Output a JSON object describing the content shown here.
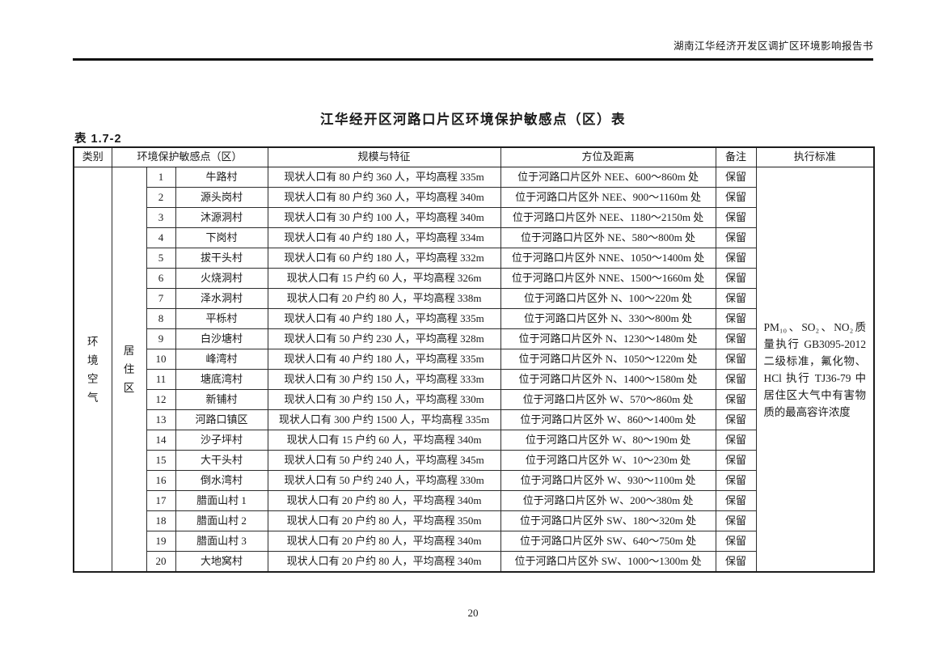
{
  "doc_header": {
    "title": "湖南江华经济开发区调扩区环境影响报告书"
  },
  "table_title": "江华经开区河路口片区环境保护敏感点（区）表",
  "table_label": "表 1.7-2",
  "table": {
    "headers": {
      "category": "类别",
      "sensitive_point": "环境保护敏感点（区）",
      "scale": "规模与特征",
      "direction": "方位及距离",
      "remark": "备注",
      "standard": "执行标准"
    },
    "category_vertical": "环境空气",
    "group_vertical": "居住区",
    "standard_text": "PM₁₀、SO₂、NO₂质量执行 GB3095-2012 二级标准，氟化物、HCl 执行 TJ36-79 中居住区大气中有害物质的最高容许浓度",
    "rows": [
      {
        "no": "1",
        "name": "牛路村",
        "scale": "现状人口有 80 户约 360 人，平均高程 335m",
        "direction": "位于河路口片区外 NEE、600～860m 处",
        "remark": "保留"
      },
      {
        "no": "2",
        "name": "源头岗村",
        "scale": "现状人口有 80 户约 360 人，平均高程 340m",
        "direction": "位于河路口片区外 NEE、900～1160m 处",
        "remark": "保留"
      },
      {
        "no": "3",
        "name": "沐源洞村",
        "scale": "现状人口有 30 户约 100 人，平均高程 340m",
        "direction": "位于河路口片区外 NEE、1180～2150m 处",
        "remark": "保留"
      },
      {
        "no": "4",
        "name": "下岗村",
        "scale": "现状人口有 40 户约 180 人，平均高程 334m",
        "direction": "位于河路口片区外 NE、580～800m 处",
        "remark": "保留"
      },
      {
        "no": "5",
        "name": "拔干头村",
        "scale": "现状人口有 60 户约 180 人，平均高程 332m",
        "direction": "位于河路口片区外 NNE、1050～1400m 处",
        "remark": "保留"
      },
      {
        "no": "6",
        "name": "火烧洞村",
        "scale": "现状人口有 15 户约 60 人，平均高程 326m",
        "direction": "位于河路口片区外 NNE、1500～1660m 处",
        "remark": "保留"
      },
      {
        "no": "7",
        "name": "泽水洞村",
        "scale": "现状人口有 20 户约 80 人，平均高程 338m",
        "direction": "位于河路口片区外 N、100～220m 处",
        "remark": "保留"
      },
      {
        "no": "8",
        "name": "平栎村",
        "scale": "现状人口有 40 户约 180 人，平均高程 335m",
        "direction": "位于河路口片区外 N、330～800m 处",
        "remark": "保留"
      },
      {
        "no": "9",
        "name": "白沙塘村",
        "scale": "现状人口有 50 户约 230 人，平均高程 328m",
        "direction": "位于河路口片区外 N、1230～1480m 处",
        "remark": "保留"
      },
      {
        "no": "10",
        "name": "峰湾村",
        "scale": "现状人口有 40 户约 180 人，平均高程 335m",
        "direction": "位于河路口片区外 N、1050～1220m 处",
        "remark": "保留"
      },
      {
        "no": "11",
        "name": "塘底湾村",
        "scale": "现状人口有 30 户约 150 人，平均高程 333m",
        "direction": "位于河路口片区外 N、1400～1580m 处",
        "remark": "保留"
      },
      {
        "no": "12",
        "name": "新铺村",
        "scale": "现状人口有 30 户约 150 人，平均高程 330m",
        "direction": "位于河路口片区外 W、570～860m 处",
        "remark": "保留"
      },
      {
        "no": "13",
        "name": "河路口镇区",
        "scale": "现状人口有 300 户约 1500 人，平均高程 335m",
        "direction": "位于河路口片区外 W、860～1400m 处",
        "remark": "保留"
      },
      {
        "no": "14",
        "name": "沙子坪村",
        "scale": "现状人口有 15 户约 60 人，平均高程 340m",
        "direction": "位于河路口片区外 W、80～190m 处",
        "remark": "保留"
      },
      {
        "no": "15",
        "name": "大干头村",
        "scale": "现状人口有 50 户约 240 人，平均高程 345m",
        "direction": "位于河路口片区外 W、10～230m 处",
        "remark": "保留"
      },
      {
        "no": "16",
        "name": "倒水湾村",
        "scale": "现状人口有 50 户约 240 人，平均高程 330m",
        "direction": "位于河路口片区外 W、930～1100m 处",
        "remark": "保留"
      },
      {
        "no": "17",
        "name": "腊面山村 1",
        "scale": "现状人口有 20 户约 80 人，平均高程 340m",
        "direction": "位于河路口片区外 W、200～380m 处",
        "remark": "保留"
      },
      {
        "no": "18",
        "name": "腊面山村 2",
        "scale": "现状人口有 20 户约 80 人，平均高程 350m",
        "direction": "位于河路口片区外 SW、180～320m 处",
        "remark": "保留"
      },
      {
        "no": "19",
        "name": "腊面山村 3",
        "scale": "现状人口有 20 户约 80 人，平均高程 340m",
        "direction": "位于河路口片区外 SW、640～750m 处",
        "remark": "保留"
      },
      {
        "no": "20",
        "name": "大地窝村",
        "scale": "现状人口有 20 户约 80 人，平均高程 340m",
        "direction": "位于河路口片区外 SW、1000～1300m 处",
        "remark": "保留"
      }
    ]
  },
  "footer": {
    "page_number": "20"
  }
}
